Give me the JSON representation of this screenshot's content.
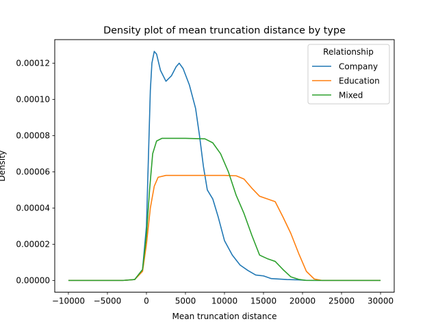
{
  "chart_data": {
    "type": "line",
    "title": "Density plot of mean truncation distance by type",
    "xlabel": "Mean truncation distance",
    "ylabel": "Density",
    "xlim": [
      -11750,
      31750
    ],
    "ylim": [
      -6.5e-06,
      0.000133
    ],
    "x_ticks": [
      -10000,
      -5000,
      0,
      5000,
      10000,
      15000,
      20000,
      25000,
      30000
    ],
    "x_tick_labels": [
      "−10000",
      "−5000",
      "0",
      "5000",
      "10000",
      "15000",
      "20000",
      "25000",
      "30000"
    ],
    "y_ticks": [
      0,
      2e-05,
      4e-05,
      6e-05,
      8e-05,
      0.0001,
      0.00012
    ],
    "y_tick_labels": [
      "0.00000",
      "0.00002",
      "0.00004",
      "0.00006",
      "0.00008",
      "0.00010",
      "0.00012"
    ],
    "grid": false,
    "legend": {
      "title": "Relationship",
      "placement": "top-right"
    },
    "series": [
      {
        "name": "Company",
        "color": "#1f77b4",
        "points": [
          [
            -10000,
            0
          ],
          [
            -3000,
            0
          ],
          [
            -1500,
            5e-07
          ],
          [
            -500,
            6e-06
          ],
          [
            0,
            3e-05
          ],
          [
            300,
            7.5e-05
          ],
          [
            500,
            0.000105
          ],
          [
            700,
            0.00012
          ],
          [
            1000,
            0.0001265
          ],
          [
            1300,
            0.000125
          ],
          [
            1800,
            0.000116
          ],
          [
            2500,
            0.00011
          ],
          [
            3200,
            0.000113
          ],
          [
            3800,
            0.000118
          ],
          [
            4200,
            0.00012
          ],
          [
            4700,
            0.000117
          ],
          [
            5500,
            0.000108
          ],
          [
            6300,
            9.5e-05
          ],
          [
            6800,
            8e-05
          ],
          [
            7300,
            6.3e-05
          ],
          [
            7800,
            5e-05
          ],
          [
            8500,
            4.5e-05
          ],
          [
            9200,
            3.5e-05
          ],
          [
            10000,
            2.2e-05
          ],
          [
            11000,
            1.4e-05
          ],
          [
            12000,
            8.5e-06
          ],
          [
            13000,
            5.5e-06
          ],
          [
            14000,
            3e-06
          ],
          [
            15000,
            2.5e-06
          ],
          [
            16000,
            1e-06
          ],
          [
            18000,
            5e-07
          ],
          [
            19500,
            3e-07
          ],
          [
            20500,
            5e-08
          ],
          [
            22000,
            0
          ],
          [
            30000,
            0
          ]
        ]
      },
      {
        "name": "Education",
        "color": "#ff7f0e",
        "points": [
          [
            -10000,
            0
          ],
          [
            -3000,
            0
          ],
          [
            -1500,
            5e-07
          ],
          [
            -500,
            5e-06
          ],
          [
            0,
            2e-05
          ],
          [
            500,
            4e-05
          ],
          [
            1000,
            5.2e-05
          ],
          [
            1500,
            5.7e-05
          ],
          [
            2500,
            5.8e-05
          ],
          [
            5000,
            5.8e-05
          ],
          [
            10000,
            5.8e-05
          ],
          [
            11500,
            5.78e-05
          ],
          [
            12500,
            5.6e-05
          ],
          [
            13500,
            5.1e-05
          ],
          [
            14500,
            4.65e-05
          ],
          [
            15500,
            4.5e-05
          ],
          [
            16500,
            4.35e-05
          ],
          [
            17500,
            3.5e-05
          ],
          [
            18500,
            2.6e-05
          ],
          [
            19500,
            1.5e-05
          ],
          [
            20500,
            5e-06
          ],
          [
            21500,
            8e-07
          ],
          [
            22500,
            0
          ],
          [
            30000,
            0
          ]
        ]
      },
      {
        "name": "Mixed",
        "color": "#2ca02c",
        "points": [
          [
            -10000,
            0
          ],
          [
            -3000,
            0
          ],
          [
            -1500,
            5e-07
          ],
          [
            -500,
            6e-06
          ],
          [
            0,
            2.5e-05
          ],
          [
            400,
            5e-05
          ],
          [
            800,
            7e-05
          ],
          [
            1300,
            7.7e-05
          ],
          [
            2000,
            7.85e-05
          ],
          [
            5000,
            7.85e-05
          ],
          [
            7500,
            7.82e-05
          ],
          [
            8500,
            7.6e-05
          ],
          [
            9500,
            7e-05
          ],
          [
            10500,
            6e-05
          ],
          [
            11500,
            4.7e-05
          ],
          [
            12500,
            3.7e-05
          ],
          [
            13500,
            2.5e-05
          ],
          [
            14500,
            1.4e-05
          ],
          [
            15500,
            1.2e-05
          ],
          [
            16500,
            1.05e-05
          ],
          [
            17500,
            6e-06
          ],
          [
            18500,
            2e-06
          ],
          [
            19500,
            6e-07
          ],
          [
            20500,
            0
          ],
          [
            30000,
            0
          ]
        ]
      }
    ]
  }
}
